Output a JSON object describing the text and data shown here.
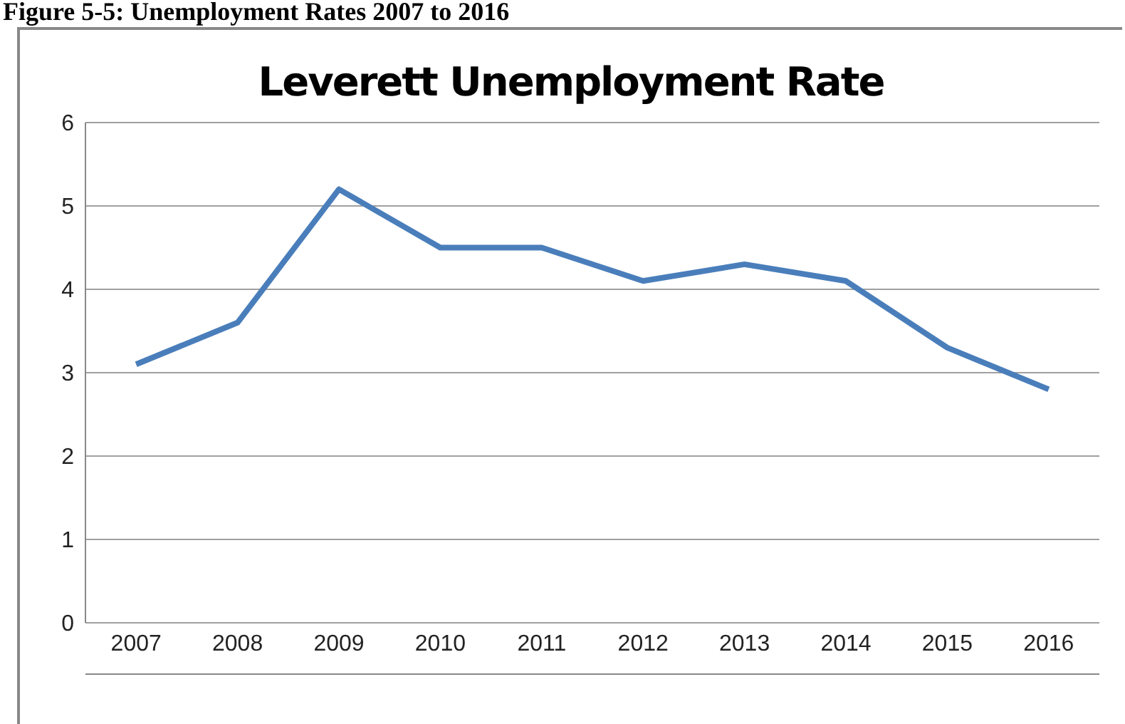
{
  "chart_data": {
    "type": "line",
    "title": "Leverett Unemployment Rate",
    "annotations": [
      "Figure 5-5: Unemployment Rates 2007 to 2016"
    ],
    "categories": [
      "2007",
      "2008",
      "2009",
      "2010",
      "2011",
      "2012",
      "2013",
      "2014",
      "2015",
      "2016"
    ],
    "series": [
      {
        "color": "#4a7ebb",
        "values": [
          3.1,
          3.6,
          5.2,
          4.5,
          4.5,
          4.1,
          4.3,
          4.1,
          3.3,
          2.8
        ]
      }
    ],
    "ylim": [
      0,
      6
    ],
    "yticks": [
      0,
      1,
      2,
      3,
      4,
      5,
      6
    ],
    "grid": "y",
    "legend": false,
    "marker": "none",
    "line_style": "solid"
  }
}
